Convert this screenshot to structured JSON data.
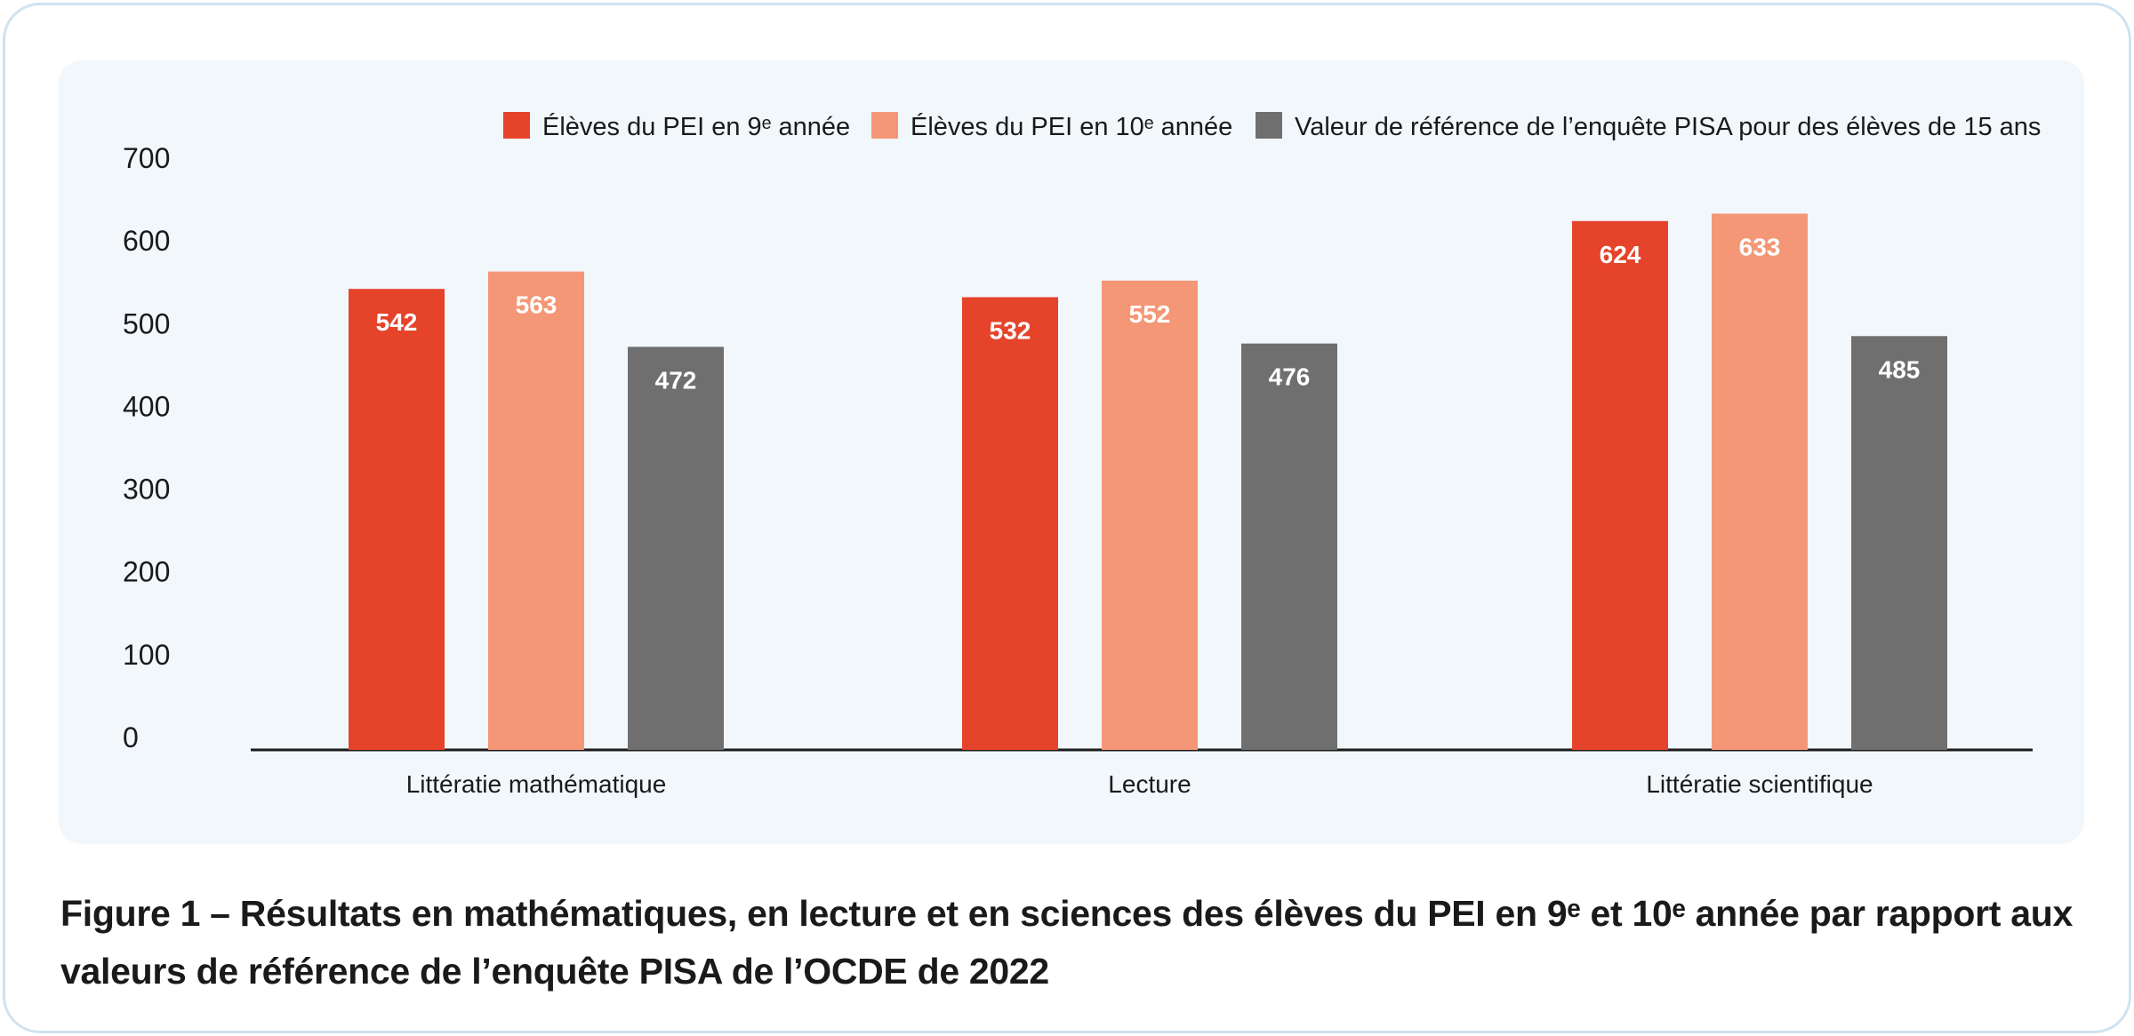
{
  "colors": {
    "grade9": "#e5432a",
    "grade10": "#f49776",
    "pisa": "#706f6f",
    "axis": "#1a1a1a",
    "panel": "#f2f7fc"
  },
  "caption": "Figure 1 – Résultats en mathématiques, en lecture et en sciences des élèves du PEI en 9ᵉ et 10ᵉ année par rapport aux valeurs de référence de l’enquête PISA de l’OCDE de 2022",
  "chart_data": {
    "type": "bar",
    "title": "",
    "xlabel": "",
    "ylabel": "",
    "ylim": [
      0,
      700
    ],
    "yticks": [
      "0",
      "100",
      "200",
      "300",
      "400",
      "500",
      "600",
      "700"
    ],
    "grid": false,
    "legend_position": "top-right",
    "categories": [
      "Littératie mathématique",
      "Lecture",
      "Littératie scientifique"
    ],
    "series": [
      {
        "name": "Élèves du PEI en 9ᵉ année",
        "color": "#e5432a",
        "values": [
          542,
          532,
          624
        ],
        "labels": [
          "542",
          "532",
          "624"
        ]
      },
      {
        "name": "Élèves du PEI en 10ᵉ année",
        "color": "#f49776",
        "values": [
          563,
          552,
          633
        ],
        "labels": [
          "563",
          "552",
          "633"
        ]
      },
      {
        "name": "Valeur de référence de l’enquête PISA pour des élèves de 15 ans",
        "color": "#706f6f",
        "values": [
          472,
          476,
          485
        ],
        "labels": [
          "472",
          "476",
          "485"
        ]
      }
    ]
  }
}
